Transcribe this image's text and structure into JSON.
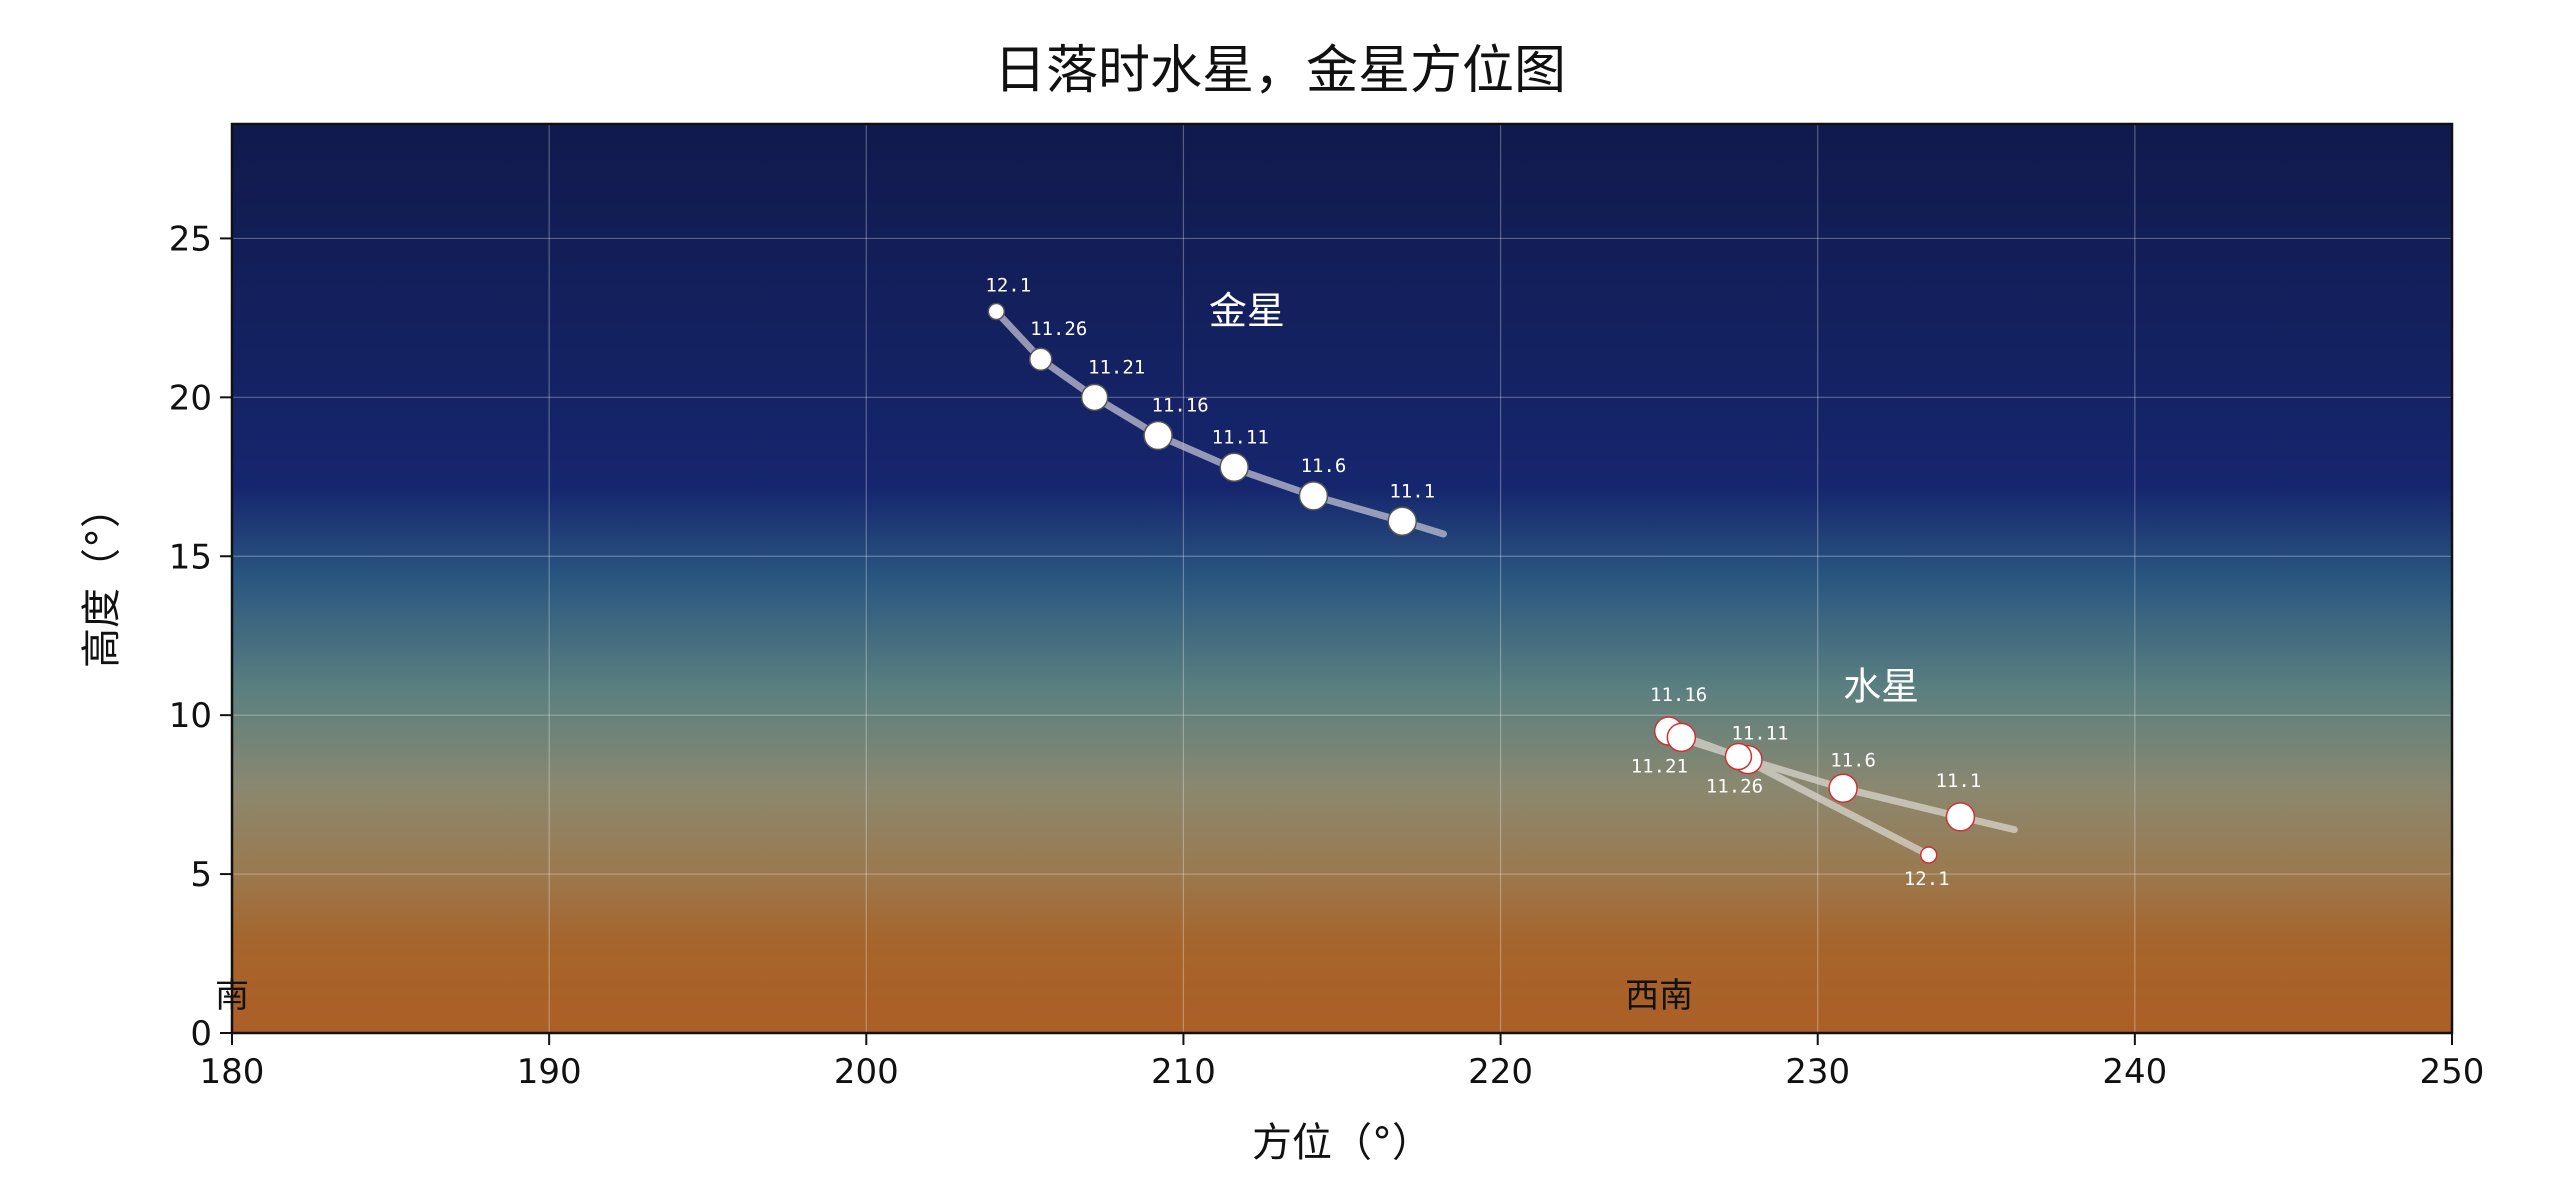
{
  "chart_data": {
    "type": "scatter",
    "title": "日落时水星，金星方位图",
    "xlabel": "方位（°）",
    "ylabel": "高度（°）",
    "xlim": [
      180,
      250
    ],
    "ylim": [
      0,
      28.6
    ],
    "xticks": [
      180,
      190,
      200,
      210,
      220,
      230,
      240,
      250
    ],
    "yticks": [
      0,
      5,
      10,
      15,
      20,
      25
    ],
    "grid": true,
    "direction_labels": [
      {
        "text": "南",
        "az": 180
      },
      {
        "text": "西南",
        "az": 225
      }
    ],
    "series": [
      {
        "name": "金星",
        "label_az": 212.0,
        "label_alt": 22.3,
        "marker_edge": "#555555",
        "path_color": "#c0c0d0",
        "path": [
          [
            204.1,
            22.7
          ],
          [
            205.5,
            21.2
          ],
          [
            207.2,
            20.0
          ],
          [
            209.2,
            18.8
          ],
          [
            211.5,
            17.8
          ],
          [
            214.1,
            16.9
          ],
          [
            216.9,
            16.1
          ],
          [
            218.2,
            15.7
          ]
        ],
        "points": [
          {
            "date": "12.1",
            "az": 204.1,
            "alt": 22.7,
            "size": 8
          },
          {
            "date": "11.26",
            "az": 205.5,
            "alt": 21.2,
            "size": 11
          },
          {
            "date": "11.21",
            "az": 207.2,
            "alt": 20.0,
            "size": 13
          },
          {
            "date": "11.16",
            "az": 209.2,
            "alt": 18.8,
            "size": 14
          },
          {
            "date": "11.11",
            "az": 211.6,
            "alt": 17.8,
            "size": 14
          },
          {
            "date": "11.6",
            "az": 214.1,
            "alt": 16.9,
            "size": 14
          },
          {
            "date": "11.1",
            "az": 216.9,
            "alt": 16.1,
            "size": 14
          }
        ]
      },
      {
        "name": "水星",
        "label_az": 232.0,
        "label_alt": 10.5,
        "marker_edge": "#d03030",
        "path_color": "#d8d4cc",
        "path": [
          [
            236.2,
            6.4
          ],
          [
            234.5,
            6.8
          ],
          [
            230.8,
            7.7
          ],
          [
            227.8,
            8.6
          ],
          [
            225.6,
            9.3
          ],
          [
            225.3,
            9.5
          ],
          [
            227.5,
            8.7
          ],
          [
            233.5,
            5.6
          ]
        ],
        "points": [
          {
            "date": "11.1",
            "az": 234.5,
            "alt": 6.8,
            "size": 14
          },
          {
            "date": "11.6",
            "az": 230.8,
            "alt": 7.7,
            "size": 14
          },
          {
            "date": "11.11",
            "az": 227.8,
            "alt": 8.6,
            "size": 14
          },
          {
            "date": "11.16",
            "az": 225.3,
            "alt": 9.5,
            "size": 14
          },
          {
            "date": "11.21",
            "az": 225.7,
            "alt": 9.3,
            "size": 14
          },
          {
            "date": "11.26",
            "az": 227.5,
            "alt": 8.7,
            "size": 13
          },
          {
            "date": "12.1",
            "az": 233.5,
            "alt": 5.6,
            "size": 8
          }
        ]
      }
    ],
    "date_label_offsets": {
      "金星": [
        [
          12,
          -20
        ],
        [
          18,
          -24
        ],
        [
          22,
          -24
        ],
        [
          22,
          -24
        ],
        [
          6,
          -24
        ],
        [
          10,
          -24
        ],
        [
          10,
          -24
        ]
      ],
      "水星": [
        [
          -2,
          -30
        ],
        [
          10,
          -22
        ],
        [
          12,
          -20
        ],
        [
          10,
          -30
        ],
        [
          -22,
          35
        ],
        [
          -4,
          36
        ],
        [
          -2,
          30
        ]
      ]
    }
  }
}
